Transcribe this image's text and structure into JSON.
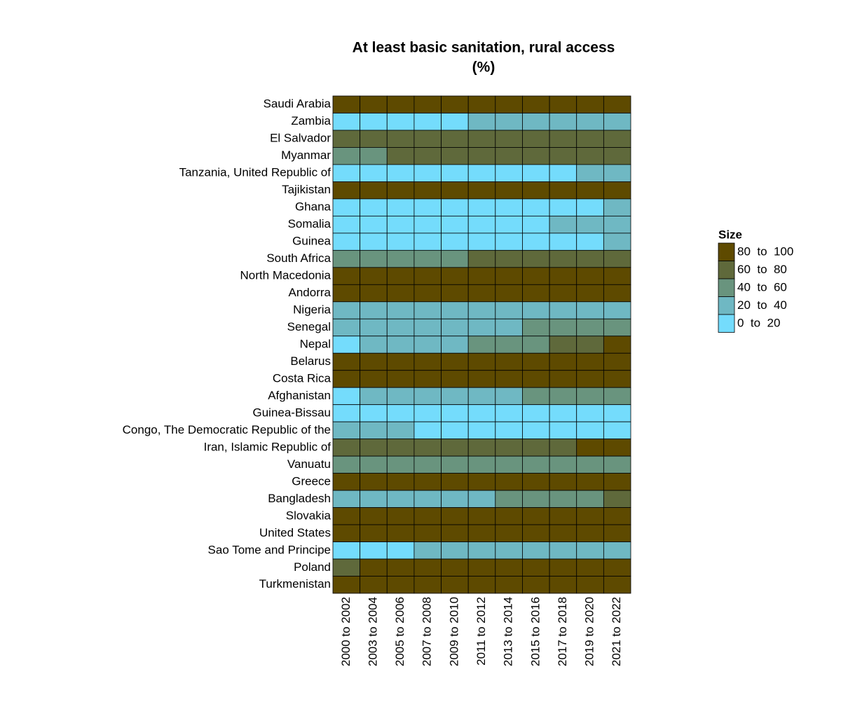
{
  "chart_data": {
    "type": "heatmap",
    "title": "At least basic sanitation, rural access",
    "subtitle": "(%)",
    "columns": [
      "2000 to 2002",
      "2003 to 2004",
      "2005 to 2006",
      "2007 to 2008",
      "2009 to 2010",
      "2011 to 2012",
      "2013 to 2014",
      "2015 to 2016",
      "2017 to 2018",
      "2019 to 2020",
      "2021 to 2022"
    ],
    "rows": [
      "Saudi Arabia",
      "Zambia",
      "El Salvador",
      "Myanmar",
      "Tanzania, United Republic of",
      "Tajikistan",
      "Ghana",
      "Somalia",
      "Guinea",
      "South Africa",
      "North Macedonia",
      "Andorra",
      "Nigeria",
      "Senegal",
      "Nepal",
      "Belarus",
      "Costa Rica",
      "Afghanistan",
      "Guinea-Bissau",
      "Congo, The Democratic Republic of the",
      "Iran, Islamic Republic of",
      "Vanuatu",
      "Greece",
      "Bangladesh",
      "Slovakia",
      "United States",
      "Sao Tome and Principe",
      "Poland",
      "Turkmenistan"
    ],
    "values": [
      [
        90,
        90,
        90,
        90,
        90,
        90,
        90,
        90,
        90,
        90,
        90
      ],
      [
        10,
        10,
        10,
        10,
        10,
        30,
        30,
        30,
        30,
        30,
        30
      ],
      [
        70,
        70,
        70,
        70,
        70,
        70,
        70,
        70,
        70,
        70,
        70
      ],
      [
        50,
        50,
        70,
        70,
        70,
        70,
        70,
        70,
        70,
        70,
        70
      ],
      [
        10,
        10,
        10,
        10,
        10,
        10,
        10,
        10,
        10,
        30,
        30
      ],
      [
        90,
        90,
        90,
        90,
        90,
        90,
        90,
        90,
        90,
        90,
        90
      ],
      [
        10,
        10,
        10,
        10,
        10,
        10,
        10,
        10,
        10,
        10,
        30
      ],
      [
        10,
        10,
        10,
        10,
        10,
        10,
        10,
        10,
        30,
        30,
        30
      ],
      [
        10,
        10,
        10,
        10,
        10,
        10,
        10,
        10,
        10,
        10,
        30
      ],
      [
        50,
        50,
        50,
        50,
        50,
        70,
        70,
        70,
        70,
        70,
        70
      ],
      [
        90,
        90,
        90,
        90,
        90,
        90,
        90,
        90,
        90,
        90,
        90
      ],
      [
        90,
        90,
        90,
        90,
        90,
        90,
        90,
        90,
        90,
        90,
        90
      ],
      [
        30,
        30,
        30,
        30,
        30,
        30,
        30,
        30,
        30,
        30,
        30
      ],
      [
        30,
        30,
        30,
        30,
        30,
        30,
        30,
        50,
        50,
        50,
        50
      ],
      [
        10,
        30,
        30,
        30,
        30,
        50,
        50,
        50,
        70,
        70,
        90
      ],
      [
        90,
        90,
        90,
        90,
        90,
        90,
        90,
        90,
        90,
        90,
        90
      ],
      [
        90,
        90,
        90,
        90,
        90,
        90,
        90,
        90,
        90,
        90,
        90
      ],
      [
        10,
        30,
        30,
        30,
        30,
        30,
        30,
        50,
        50,
        50,
        50
      ],
      [
        10,
        10,
        10,
        10,
        10,
        10,
        10,
        10,
        10,
        10,
        10
      ],
      [
        30,
        30,
        30,
        10,
        10,
        10,
        10,
        10,
        10,
        10,
        10
      ],
      [
        70,
        70,
        70,
        70,
        70,
        70,
        70,
        70,
        70,
        90,
        90
      ],
      [
        50,
        50,
        50,
        50,
        50,
        50,
        50,
        50,
        50,
        50,
        50
      ],
      [
        90,
        90,
        90,
        90,
        90,
        90,
        90,
        90,
        90,
        90,
        90
      ],
      [
        30,
        30,
        30,
        30,
        30,
        30,
        50,
        50,
        50,
        50,
        70
      ],
      [
        90,
        90,
        90,
        90,
        90,
        90,
        90,
        90,
        90,
        90,
        90
      ],
      [
        90,
        90,
        90,
        90,
        90,
        90,
        90,
        90,
        90,
        90,
        90
      ],
      [
        10,
        10,
        10,
        30,
        30,
        30,
        30,
        30,
        30,
        30,
        30
      ],
      [
        70,
        90,
        90,
        90,
        90,
        90,
        90,
        90,
        90,
        90,
        90
      ],
      [
        90,
        90,
        90,
        90,
        90,
        90,
        90,
        90,
        90,
        90,
        90
      ]
    ],
    "legend": {
      "title": "Size",
      "bins": [
        {
          "label": "80  to  100",
          "min": 80,
          "max": 100,
          "color": "#5e4a00"
        },
        {
          "label": "60  to  80",
          "min": 60,
          "max": 80,
          "color": "#5f693b"
        },
        {
          "label": "40  to  60",
          "min": 40,
          "max": 60,
          "color": "#69947e"
        },
        {
          "label": "20  to  40",
          "min": 20,
          "max": 40,
          "color": "#6fb8c3"
        },
        {
          "label": "0  to  20",
          "min": 0,
          "max": 20,
          "color": "#74dcfc"
        }
      ]
    }
  }
}
